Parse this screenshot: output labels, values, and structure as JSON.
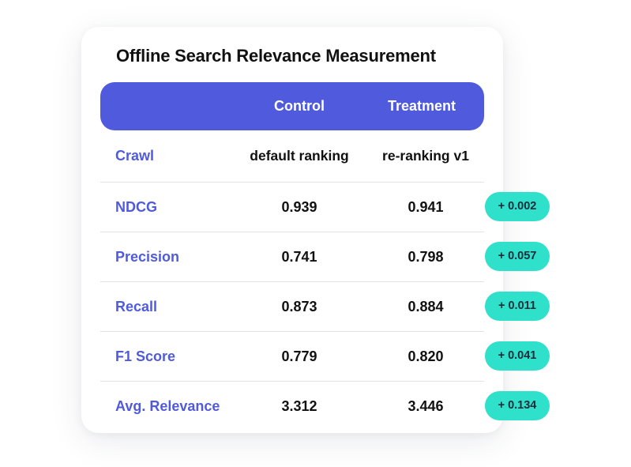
{
  "title": "Offline Search Relevance Measurement",
  "header": {
    "control": "Control",
    "treatment": "Treatment"
  },
  "rows": [
    {
      "metric": "Crawl",
      "control": "default ranking",
      "treatment": "re-ranking v1",
      "delta": ""
    },
    {
      "metric": "NDCG",
      "control": "0.939",
      "treatment": "0.941",
      "delta": "+ 0.002"
    },
    {
      "metric": "Precision",
      "control": "0.741",
      "treatment": "0.798",
      "delta": "+ 0.057"
    },
    {
      "metric": "Recall",
      "control": "0.873",
      "treatment": "0.884",
      "delta": "+ 0.011"
    },
    {
      "metric": "F1 Score",
      "control": "0.779",
      "treatment": "0.820",
      "delta": "+ 0.041"
    },
    {
      "metric": "Avg. Relevance",
      "control": "3.312",
      "treatment": "3.446",
      "delta": "+ 0.134"
    }
  ],
  "colors": {
    "accent": "#4f5bdc",
    "delta_badge": "#2fe0cb",
    "text": "#111111"
  }
}
